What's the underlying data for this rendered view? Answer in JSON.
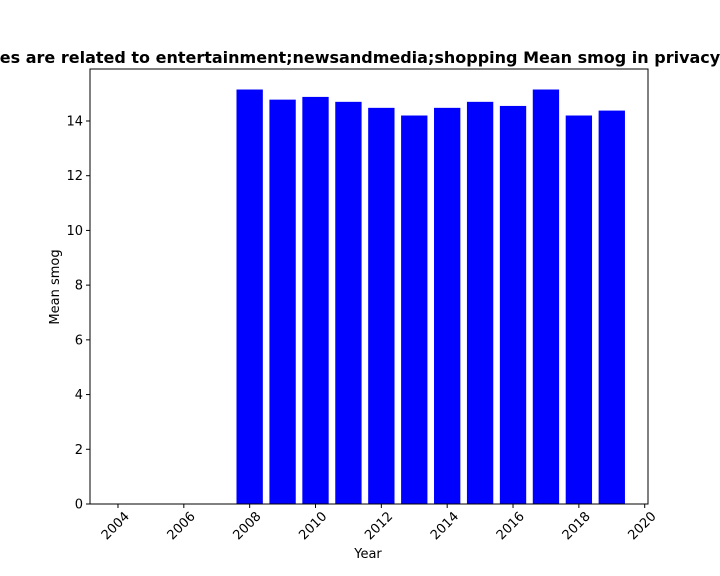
{
  "chart_data": {
    "type": "bar",
    "title": "es are related to entertainment;newsandmedia;shopping Mean smog in privacy",
    "xlabel": "Year",
    "ylabel": "Mean smog",
    "x": [
      2008,
      2009,
      2010,
      2011,
      2012,
      2013,
      2014,
      2015,
      2016,
      2017,
      2018,
      2019
    ],
    "values": [
      15.15,
      14.78,
      14.88,
      14.7,
      14.48,
      14.2,
      14.48,
      14.7,
      14.55,
      15.15,
      14.2,
      14.38
    ],
    "xlim": [
      2003.15,
      2020.1
    ],
    "ylim": [
      0,
      15.9
    ],
    "xticks": [
      "2004",
      "2006",
      "2008",
      "2010",
      "2012",
      "2014",
      "2016",
      "2018",
      "2020"
    ],
    "yticks": [
      "0",
      "2",
      "4",
      "6",
      "8",
      "10",
      "12",
      "14"
    ],
    "bar_color": "#0000ff",
    "grid": false,
    "legend": "none"
  }
}
